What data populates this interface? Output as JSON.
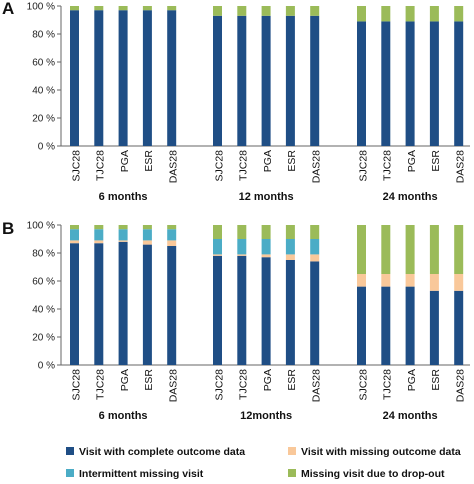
{
  "chart_data": [
    {
      "type": "bar",
      "stacked": true,
      "panel_label": "A",
      "ylim": [
        0,
        100
      ],
      "yticks": [
        "0 %",
        "20 %",
        "40 %",
        "60 %",
        "80 %",
        "100 %"
      ],
      "groups": [
        {
          "label": "6 months",
          "categories": [
            "SJC28",
            "TJC28",
            "PGA",
            "ESR",
            "DAS28"
          ],
          "series": [
            {
              "name": "Visit with complete outcome data",
              "values": [
                97,
                97,
                97,
                97,
                97
              ]
            },
            {
              "name": "Visit with missing outcome data",
              "values": [
                0,
                0,
                0,
                0,
                0
              ]
            },
            {
              "name": "Intermittent missing visit",
              "values": [
                0,
                0,
                0,
                0,
                0
              ]
            },
            {
              "name": "Missing visit due to drop-out",
              "values": [
                3,
                3,
                3,
                3,
                3
              ]
            }
          ]
        },
        {
          "label": "12 months",
          "categories": [
            "SJC28",
            "TJC28",
            "PGA",
            "ESR",
            "DAS28"
          ],
          "series": [
            {
              "name": "Visit with complete outcome data",
              "values": [
                93,
                93,
                93,
                93,
                93
              ]
            },
            {
              "name": "Visit with missing outcome data",
              "values": [
                0,
                0,
                0,
                0,
                0
              ]
            },
            {
              "name": "Intermittent missing visit",
              "values": [
                0,
                0,
                0,
                0,
                0
              ]
            },
            {
              "name": "Missing visit due to drop-out",
              "values": [
                7,
                7,
                7,
                7,
                7
              ]
            }
          ]
        },
        {
          "label": "24 months",
          "categories": [
            "SJC28",
            "TJC28",
            "PGA",
            "ESR",
            "DAS28"
          ],
          "series": [
            {
              "name": "Visit with complete outcome data",
              "values": [
                89,
                89,
                89,
                89,
                89
              ]
            },
            {
              "name": "Visit with missing outcome data",
              "values": [
                0,
                0,
                0,
                0,
                0
              ]
            },
            {
              "name": "Intermittent missing visit",
              "values": [
                0,
                0,
                0,
                0,
                0
              ]
            },
            {
              "name": "Missing visit due to drop-out",
              "values": [
                11,
                11,
                11,
                11,
                11
              ]
            }
          ]
        }
      ]
    },
    {
      "type": "bar",
      "stacked": true,
      "panel_label": "B",
      "ylim": [
        0,
        100
      ],
      "yticks": [
        "0 %",
        "20 %",
        "40 %",
        "60 %",
        "80 %",
        "100 %"
      ],
      "groups": [
        {
          "label": "6 months",
          "categories": [
            "SJC28",
            "TJC28",
            "PGA",
            "ESR",
            "DAS28"
          ],
          "series": [
            {
              "name": "Visit with complete outcome data",
              "values": [
                87,
                87,
                88,
                86,
                85
              ]
            },
            {
              "name": "Visit with missing outcome data",
              "values": [
                2,
                2,
                1,
                3,
                4
              ]
            },
            {
              "name": "Intermittent missing visit",
              "values": [
                8,
                8,
                8,
                8,
                8
              ]
            },
            {
              "name": "Missing visit due to drop-out",
              "values": [
                3,
                3,
                3,
                3,
                3
              ]
            }
          ]
        },
        {
          "label": "12months",
          "categories": [
            "SJC28",
            "TJC28",
            "PGA",
            "ESR",
            "DAS28"
          ],
          "series": [
            {
              "name": "Visit with complete outcome data",
              "values": [
                78,
                78,
                77,
                75,
                74
              ]
            },
            {
              "name": "Visit with missing outcome data",
              "values": [
                1,
                1,
                2,
                4,
                5
              ]
            },
            {
              "name": "Intermittent missing visit",
              "values": [
                11,
                11,
                11,
                11,
                11
              ]
            },
            {
              "name": "Missing visit due to drop-out",
              "values": [
                10,
                10,
                10,
                10,
                10
              ]
            }
          ]
        },
        {
          "label": "24 months",
          "categories": [
            "SJC28",
            "TJC28",
            "PGA",
            "ESR",
            "DAS28"
          ],
          "series": [
            {
              "name": "Visit with complete outcome data",
              "values": [
                56,
                56,
                56,
                53,
                53
              ]
            },
            {
              "name": "Visit with missing outcome data",
              "values": [
                9,
                9,
                9,
                12,
                12
              ]
            },
            {
              "name": "Intermittent missing visit",
              "values": [
                0,
                0,
                0,
                0,
                0
              ]
            },
            {
              "name": "Missing visit due to drop-out",
              "values": [
                35,
                35,
                35,
                35,
                35
              ]
            }
          ]
        }
      ]
    }
  ],
  "legend": [
    {
      "label": "Visit with complete outcome data",
      "color": "#1F4E85"
    },
    {
      "label": "Visit with missing outcome data",
      "color": "#F9C89A"
    },
    {
      "label": "Intermittent missing visit",
      "color": "#4BACC6"
    },
    {
      "label": "Missing visit due to drop-out",
      "color": "#9BBB59"
    }
  ],
  "colors": {
    "Visit with complete outcome data": "#1F4E85",
    "Visit with missing outcome data": "#F9C89A",
    "Intermittent missing visit": "#4BACC6",
    "Missing visit due to drop-out": "#9BBB59"
  }
}
